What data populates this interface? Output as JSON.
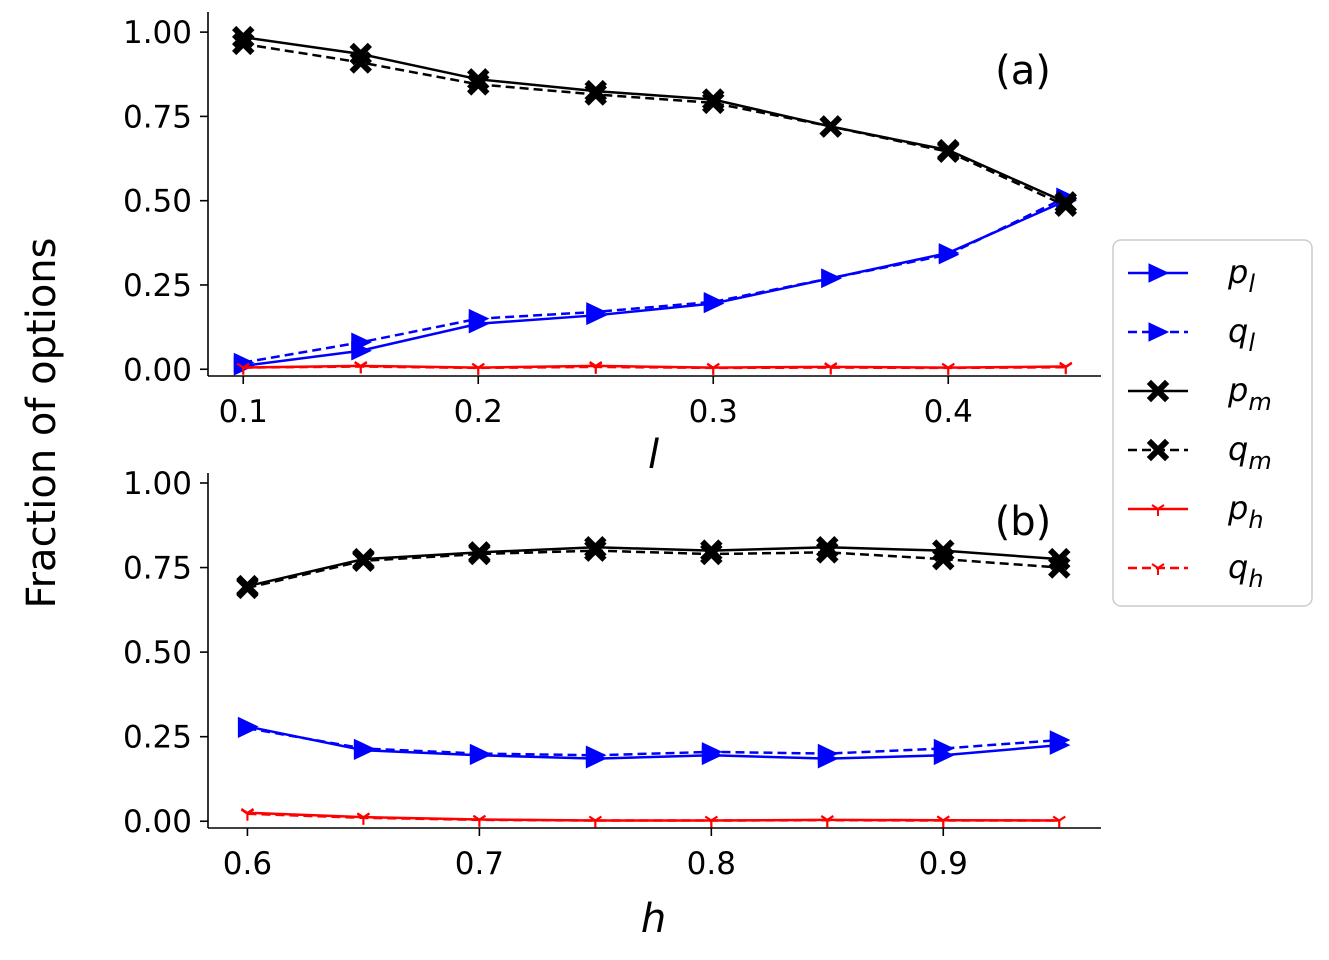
{
  "figure": {
    "ylabel": "Fraction of options",
    "colors": {
      "blue": "#0000ff",
      "black": "#000000",
      "red": "#ff0000"
    }
  },
  "chart_data": [
    {
      "type": "line",
      "panel_label": "(a)",
      "xlabel": "l",
      "ylabel": "Fraction of options",
      "x": [
        0.1,
        0.15,
        0.2,
        0.25,
        0.3,
        0.35,
        0.4,
        0.45
      ],
      "xlim": [
        0.085,
        0.465
      ],
      "ylim": [
        -0.02,
        1.03
      ],
      "xticks": [
        "0.1",
        "0.2",
        "0.3",
        "0.4"
      ],
      "xtick_values": [
        0.1,
        0.2,
        0.3,
        0.4
      ],
      "yticks": [
        "0.00",
        "0.25",
        "0.50",
        "0.75",
        "1.00"
      ],
      "ytick_values": [
        0.0,
        0.25,
        0.5,
        0.75,
        1.0
      ],
      "series": [
        {
          "name": "p_l",
          "color": "blue",
          "dash": "solid",
          "marker": "triangle-right",
          "values": [
            0.01,
            0.055,
            0.135,
            0.16,
            0.195,
            0.27,
            0.345,
            0.5
          ]
        },
        {
          "name": "q_l",
          "color": "blue",
          "dash": "dashed",
          "marker": "triangle-right",
          "values": [
            0.02,
            0.08,
            0.15,
            0.17,
            0.2,
            0.27,
            0.34,
            0.51
          ]
        },
        {
          "name": "p_m",
          "color": "black",
          "dash": "solid",
          "marker": "x",
          "values": [
            0.985,
            0.935,
            0.86,
            0.825,
            0.8,
            0.72,
            0.65,
            0.495
          ]
        },
        {
          "name": "q_m",
          "color": "black",
          "dash": "dashed",
          "marker": "x",
          "values": [
            0.965,
            0.91,
            0.845,
            0.815,
            0.79,
            0.72,
            0.645,
            0.485
          ]
        },
        {
          "name": "p_h",
          "color": "red",
          "dash": "solid",
          "marker": "tri-down",
          "values": [
            0.005,
            0.01,
            0.005,
            0.01,
            0.005,
            0.007,
            0.005,
            0.008
          ]
        },
        {
          "name": "q_h",
          "color": "red",
          "dash": "dashed",
          "marker": "tri-down",
          "values": [
            0.005,
            0.008,
            0.004,
            0.007,
            0.004,
            0.005,
            0.004,
            0.006
          ]
        }
      ]
    },
    {
      "type": "line",
      "panel_label": "(b)",
      "xlabel": "h",
      "ylabel": "Fraction of options",
      "x": [
        0.6,
        0.65,
        0.7,
        0.75,
        0.8,
        0.85,
        0.9,
        0.95
      ],
      "xlim": [
        0.583,
        0.968
      ],
      "ylim": [
        -0.02,
        1.0
      ],
      "xticks": [
        "0.6",
        "0.7",
        "0.8",
        "0.9"
      ],
      "xtick_values": [
        0.6,
        0.7,
        0.8,
        0.9
      ],
      "yticks": [
        "0.00",
        "0.25",
        "0.50",
        "0.75",
        "1.00"
      ],
      "ytick_values": [
        0.0,
        0.25,
        0.5,
        0.75,
        1.0
      ],
      "series": [
        {
          "name": "p_l",
          "color": "blue",
          "dash": "solid",
          "marker": "triangle-right",
          "values": [
            0.28,
            0.21,
            0.195,
            0.185,
            0.195,
            0.185,
            0.195,
            0.225
          ]
        },
        {
          "name": "q_l",
          "color": "blue",
          "dash": "dashed",
          "marker": "triangle-right",
          "values": [
            0.275,
            0.215,
            0.2,
            0.195,
            0.205,
            0.2,
            0.215,
            0.24
          ]
        },
        {
          "name": "p_m",
          "color": "black",
          "dash": "solid",
          "marker": "x",
          "values": [
            0.695,
            0.775,
            0.795,
            0.81,
            0.8,
            0.81,
            0.8,
            0.775
          ]
        },
        {
          "name": "q_m",
          "color": "black",
          "dash": "dashed",
          "marker": "x",
          "values": [
            0.69,
            0.77,
            0.79,
            0.8,
            0.79,
            0.795,
            0.775,
            0.75
          ]
        },
        {
          "name": "p_h",
          "color": "red",
          "dash": "solid",
          "marker": "tri-down",
          "values": [
            0.025,
            0.012,
            0.005,
            0.002,
            0.002,
            0.004,
            0.003,
            0.002
          ]
        },
        {
          "name": "q_h",
          "color": "red",
          "dash": "dashed",
          "marker": "tri-down",
          "values": [
            0.022,
            0.01,
            0.004,
            0.002,
            0.002,
            0.003,
            0.002,
            0.002
          ]
        }
      ]
    }
  ],
  "legend": {
    "placement": "right",
    "entries": [
      {
        "series": "p_l",
        "base": "p",
        "sub": "l"
      },
      {
        "series": "q_l",
        "base": "q",
        "sub": "l"
      },
      {
        "series": "p_m",
        "base": "p",
        "sub": "m"
      },
      {
        "series": "q_m",
        "base": "q",
        "sub": "m"
      },
      {
        "series": "p_h",
        "base": "p",
        "sub": "h"
      },
      {
        "series": "q_h",
        "base": "q",
        "sub": "h"
      }
    ]
  }
}
